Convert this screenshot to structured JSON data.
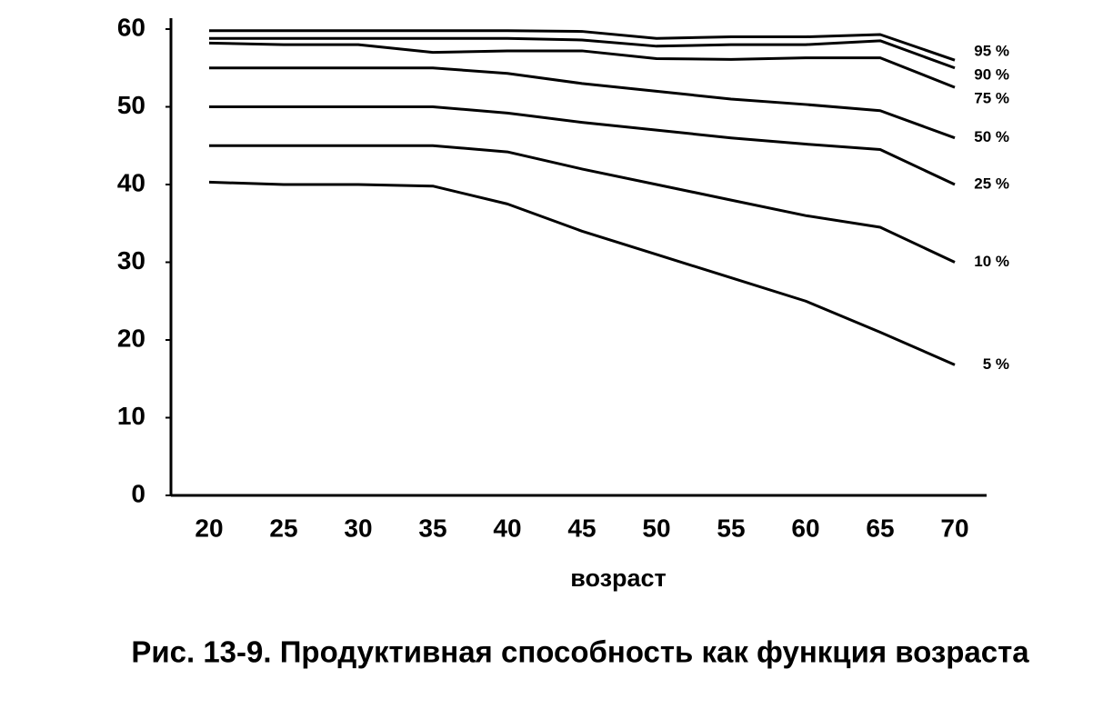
{
  "chart_data": {
    "type": "line",
    "caption": "Рис. 13-9. Продуктивная способность как функция возраста",
    "x_label": "возраст",
    "x": [
      20,
      25,
      30,
      35,
      40,
      45,
      50,
      55,
      60,
      65,
      70
    ],
    "xlim": [
      20,
      70
    ],
    "xticks": [
      20,
      25,
      30,
      35,
      40,
      45,
      50,
      55,
      60,
      65,
      70
    ],
    "ylim": [
      0,
      60
    ],
    "yticks": [
      0,
      10,
      20,
      30,
      40,
      50,
      60
    ],
    "series": [
      {
        "name": "95 %",
        "color": "#000000",
        "values": [
          59.8,
          59.8,
          59.8,
          59.8,
          59.8,
          59.7,
          58.8,
          59,
          59,
          59.3,
          56
        ]
      },
      {
        "name": "90 %",
        "color": "#000000",
        "values": [
          58.8,
          58.8,
          58.8,
          58.8,
          58.8,
          58.6,
          57.8,
          58,
          58,
          58.5,
          55
        ]
      },
      {
        "name": "75 %",
        "color": "#000000",
        "values": [
          58.2,
          58,
          58,
          57,
          57.2,
          57.2,
          56.2,
          56.1,
          56.3,
          56.3,
          52.5
        ]
      },
      {
        "name": "50 %",
        "color": "#000000",
        "values": [
          55,
          55,
          55,
          55,
          54.3,
          53,
          52,
          51,
          50.3,
          49.5,
          46
        ]
      },
      {
        "name": "25 %",
        "color": "#000000",
        "values": [
          50,
          50,
          50,
          50,
          49.2,
          48,
          47,
          46,
          45.2,
          44.5,
          40
        ]
      },
      {
        "name": "10 %",
        "color": "#000000",
        "values": [
          45,
          45,
          45,
          45,
          44.2,
          42,
          40,
          38,
          36,
          34.5,
          30
        ]
      },
      {
        "name": "5 %",
        "color": "#000000",
        "values": [
          40.3,
          40,
          40,
          39.8,
          37.5,
          34,
          31,
          28,
          25,
          21,
          16.8
        ]
      }
    ]
  }
}
